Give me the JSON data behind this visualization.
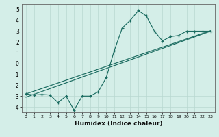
{
  "title": "",
  "xlabel": "Humidex (Indice chaleur)",
  "bg_color": "#d4eee8",
  "grid_color": "#b8d8d0",
  "line_color": "#1a6b60",
  "xlim": [
    -0.5,
    23.5
  ],
  "ylim": [
    -4.5,
    5.5
  ],
  "xticks": [
    0,
    1,
    2,
    3,
    4,
    5,
    6,
    7,
    8,
    9,
    10,
    11,
    12,
    13,
    14,
    15,
    16,
    17,
    18,
    19,
    20,
    21,
    22,
    23
  ],
  "yticks": [
    -4,
    -3,
    -2,
    -1,
    0,
    1,
    2,
    3,
    4,
    5
  ],
  "curve_x": [
    0,
    1,
    2,
    3,
    4,
    5,
    6,
    7,
    8,
    9,
    10,
    11,
    12,
    13,
    14,
    15,
    16,
    17,
    18,
    19,
    20,
    21,
    22,
    23
  ],
  "curve_y": [
    -2.8,
    -2.9,
    -2.85,
    -2.9,
    -3.6,
    -3.0,
    -4.3,
    -3.0,
    -3.0,
    -2.6,
    -1.3,
    1.2,
    3.3,
    4.0,
    4.9,
    4.4,
    3.0,
    2.1,
    2.5,
    2.6,
    3.0,
    3.0,
    3.0,
    3.0
  ],
  "reg_line1_x": [
    0,
    23
  ],
  "reg_line1_y": [
    -2.8,
    3.05
  ],
  "reg_line2_x": [
    0,
    23
  ],
  "reg_line2_y": [
    -3.1,
    3.0
  ]
}
